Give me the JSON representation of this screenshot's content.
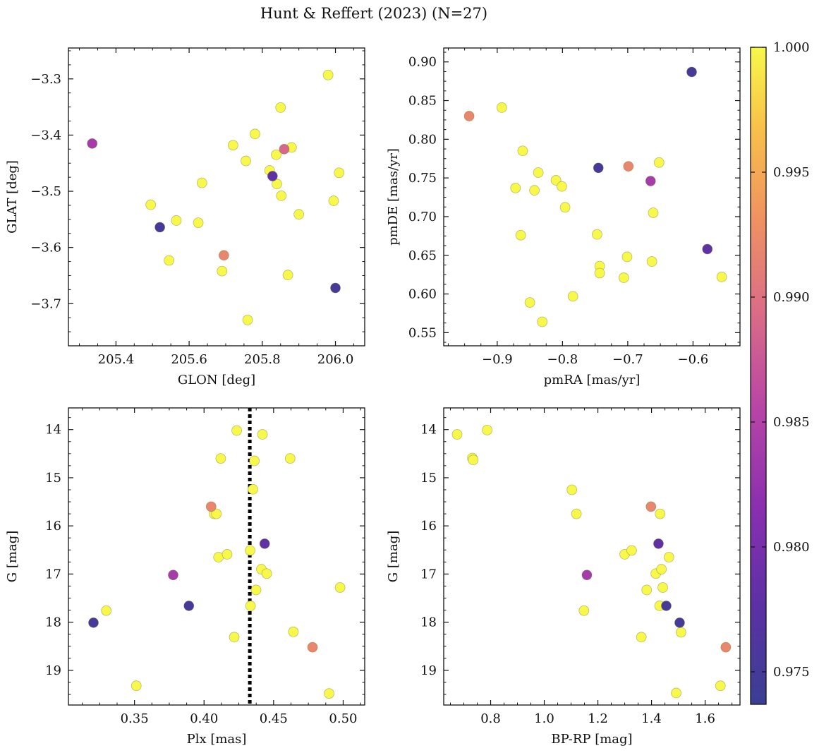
{
  "figure": {
    "title": "Hunt & Reffert (2023) (N=27)"
  },
  "colorbar": {
    "min": 0.9737,
    "max": 1.0,
    "ticks": [
      "0.975",
      "0.980",
      "0.985",
      "0.990",
      "0.995",
      "1.000"
    ],
    "tick_values": [
      0.975,
      0.98,
      0.985,
      0.99,
      0.995,
      1.0
    ],
    "colormap": "plasma"
  },
  "chart_data": [
    {
      "type": "scatter",
      "xlabel": "GLON [deg]",
      "ylabel": "GLAT [deg]",
      "xlim": [
        205.27,
        206.08
      ],
      "ylim": [
        -3.775,
        -3.245
      ],
      "y_inverted": false,
      "xticks": [
        205.4,
        205.6,
        205.8,
        206.0
      ],
      "xtick_labels": [
        "205.4",
        "205.6",
        "205.8",
        "206.0"
      ],
      "yticks": [
        -3.3,
        -3.4,
        -3.5,
        -3.6,
        -3.7
      ],
      "ytick_labels": [
        "−3.3",
        "−3.4",
        "−3.5",
        "−3.6",
        "−3.7"
      ],
      "points": [
        {
          "x": 205.335,
          "y": -3.415,
          "c": 0.984
        },
        {
          "x": 205.495,
          "y": -3.524,
          "c": 1.0
        },
        {
          "x": 205.52,
          "y": -3.564,
          "c": 0.975
        },
        {
          "x": 205.545,
          "y": -3.623,
          "c": 1.0
        },
        {
          "x": 205.565,
          "y": -3.552,
          "c": 1.0
        },
        {
          "x": 205.625,
          "y": -3.556,
          "c": 1.0
        },
        {
          "x": 205.635,
          "y": -3.485,
          "c": 1.0
        },
        {
          "x": 205.69,
          "y": -3.642,
          "c": 1.0
        },
        {
          "x": 205.695,
          "y": -3.614,
          "c": 0.992
        },
        {
          "x": 205.72,
          "y": -3.418,
          "c": 1.0
        },
        {
          "x": 205.755,
          "y": -3.446,
          "c": 1.0
        },
        {
          "x": 205.76,
          "y": -3.729,
          "c": 1.0
        },
        {
          "x": 205.78,
          "y": -3.398,
          "c": 1.0
        },
        {
          "x": 205.82,
          "y": -3.463,
          "c": 1.0
        },
        {
          "x": 205.828,
          "y": -3.473,
          "c": 0.978
        },
        {
          "x": 205.838,
          "y": -3.435,
          "c": 1.0
        },
        {
          "x": 205.84,
          "y": -3.487,
          "c": 1.0
        },
        {
          "x": 205.85,
          "y": -3.351,
          "c": 1.0
        },
        {
          "x": 205.852,
          "y": -3.508,
          "c": 1.0
        },
        {
          "x": 205.86,
          "y": -3.425,
          "c": 0.989
        },
        {
          "x": 205.87,
          "y": -3.649,
          "c": 1.0
        },
        {
          "x": 205.88,
          "y": -3.422,
          "c": 1.0
        },
        {
          "x": 205.9,
          "y": -3.541,
          "c": 1.0
        },
        {
          "x": 205.98,
          "y": -3.293,
          "c": 1.0
        },
        {
          "x": 205.995,
          "y": -3.517,
          "c": 1.0
        },
        {
          "x": 206.0,
          "y": -3.672,
          "c": 0.975
        },
        {
          "x": 206.01,
          "y": -3.467,
          "c": 1.0
        }
      ]
    },
    {
      "type": "scatter",
      "xlabel": "pmRA [mas/yr]",
      "ylabel": "pmDE [mas/yr]",
      "xlim": [
        -0.982,
        -0.528
      ],
      "ylim": [
        0.533,
        0.918
      ],
      "y_inverted": false,
      "xticks": [
        -0.9,
        -0.8,
        -0.7,
        -0.6
      ],
      "xtick_labels": [
        "−0.9",
        "−0.8",
        "−0.7",
        "−0.6"
      ],
      "yticks": [
        0.55,
        0.6,
        0.65,
        0.7,
        0.75,
        0.8,
        0.85,
        0.9
      ],
      "ytick_labels": [
        "0.55",
        "0.60",
        "0.65",
        "0.70",
        "0.75",
        "0.80",
        "0.85",
        "0.90"
      ],
      "points": [
        {
          "x": -0.943,
          "y": 0.83,
          "c": 0.992
        },
        {
          "x": -0.893,
          "y": 0.841,
          "c": 1.0
        },
        {
          "x": -0.872,
          "y": 0.737,
          "c": 1.0
        },
        {
          "x": -0.864,
          "y": 0.676,
          "c": 1.0
        },
        {
          "x": -0.861,
          "y": 0.785,
          "c": 1.0
        },
        {
          "x": -0.85,
          "y": 0.589,
          "c": 1.0
        },
        {
          "x": -0.843,
          "y": 0.734,
          "c": 1.0
        },
        {
          "x": -0.837,
          "y": 0.757,
          "c": 1.0
        },
        {
          "x": -0.831,
          "y": 0.564,
          "c": 1.0
        },
        {
          "x": -0.81,
          "y": 0.747,
          "c": 1.0
        },
        {
          "x": -0.801,
          "y": 0.739,
          "c": 1.0
        },
        {
          "x": -0.796,
          "y": 0.712,
          "c": 1.0
        },
        {
          "x": -0.784,
          "y": 0.597,
          "c": 1.0
        },
        {
          "x": -0.747,
          "y": 0.677,
          "c": 1.0
        },
        {
          "x": -0.745,
          "y": 0.763,
          "c": 0.975
        },
        {
          "x": -0.743,
          "y": 0.636,
          "c": 1.0
        },
        {
          "x": -0.743,
          "y": 0.627,
          "c": 1.0
        },
        {
          "x": -0.706,
          "y": 0.621,
          "c": 1.0
        },
        {
          "x": -0.701,
          "y": 0.648,
          "c": 1.0
        },
        {
          "x": -0.699,
          "y": 0.765,
          "c": 0.992
        },
        {
          "x": -0.665,
          "y": 0.746,
          "c": 0.984
        },
        {
          "x": -0.663,
          "y": 0.642,
          "c": 1.0
        },
        {
          "x": -0.661,
          "y": 0.705,
          "c": 1.0
        },
        {
          "x": -0.652,
          "y": 0.77,
          "c": 1.0
        },
        {
          "x": -0.602,
          "y": 0.887,
          "c": 0.975
        },
        {
          "x": -0.578,
          "y": 0.658,
          "c": 0.978
        },
        {
          "x": -0.556,
          "y": 0.622,
          "c": 1.0
        }
      ]
    },
    {
      "type": "scatter",
      "xlabel": "Plx [mas]",
      "ylabel": "G [mag]",
      "xlim": [
        0.3025,
        0.5155
      ],
      "ylim": [
        19.72,
        13.55
      ],
      "y_inverted": true,
      "xticks": [
        0.35,
        0.4,
        0.45,
        0.5
      ],
      "xtick_labels": [
        "0.35",
        "0.40",
        "0.45",
        "0.50"
      ],
      "yticks": [
        14,
        15,
        16,
        17,
        18,
        19
      ],
      "ytick_labels": [
        "14",
        "15",
        "16",
        "17",
        "18",
        "19"
      ],
      "vline": {
        "x": 0.4329,
        "style": "dotted",
        "color": "#000000"
      },
      "points": [
        {
          "x": 0.3205,
          "y": 18.01,
          "c": 0.975
        },
        {
          "x": 0.3297,
          "y": 17.76,
          "c": 1.0
        },
        {
          "x": 0.3513,
          "y": 19.32,
          "c": 1.0
        },
        {
          "x": 0.3778,
          "y": 17.02,
          "c": 0.984
        },
        {
          "x": 0.3891,
          "y": 17.66,
          "c": 0.975
        },
        {
          "x": 0.4051,
          "y": 15.6,
          "c": 0.992
        },
        {
          "x": 0.4073,
          "y": 15.75,
          "c": 1.0
        },
        {
          "x": 0.4089,
          "y": 15.75,
          "c": 1.0
        },
        {
          "x": 0.4104,
          "y": 16.65,
          "c": 1.0
        },
        {
          "x": 0.412,
          "y": 14.6,
          "c": 1.0
        },
        {
          "x": 0.4166,
          "y": 16.59,
          "c": 1.0
        },
        {
          "x": 0.4217,
          "y": 18.31,
          "c": 1.0
        },
        {
          "x": 0.4235,
          "y": 14.02,
          "c": 1.0
        },
        {
          "x": 0.4331,
          "y": 16.51,
          "c": 1.0
        },
        {
          "x": 0.4334,
          "y": 17.66,
          "c": 1.0
        },
        {
          "x": 0.4351,
          "y": 15.24,
          "c": 1.0
        },
        {
          "x": 0.4362,
          "y": 14.65,
          "c": 1.0
        },
        {
          "x": 0.4374,
          "y": 17.33,
          "c": 1.0
        },
        {
          "x": 0.4412,
          "y": 16.9,
          "c": 1.0
        },
        {
          "x": 0.442,
          "y": 14.1,
          "c": 1.0
        },
        {
          "x": 0.4436,
          "y": 16.37,
          "c": 0.978
        },
        {
          "x": 0.4451,
          "y": 16.99,
          "c": 1.0
        },
        {
          "x": 0.4619,
          "y": 14.6,
          "c": 1.0
        },
        {
          "x": 0.4642,
          "y": 18.2,
          "c": 1.0
        },
        {
          "x": 0.478,
          "y": 18.52,
          "c": 0.992
        },
        {
          "x": 0.4899,
          "y": 19.48,
          "c": 1.0
        },
        {
          "x": 0.4978,
          "y": 17.28,
          "c": 1.0
        }
      ]
    },
    {
      "type": "scatter",
      "xlabel": "BP-RP [mag]",
      "ylabel": "G [mag]",
      "xlim": [
        0.625,
        1.73
      ],
      "ylim": [
        19.72,
        13.55
      ],
      "y_inverted": true,
      "xticks": [
        0.8,
        1.0,
        1.2,
        1.4,
        1.6
      ],
      "xtick_labels": [
        "0.8",
        "1.0",
        "1.2",
        "1.4",
        "1.6"
      ],
      "yticks": [
        14,
        15,
        16,
        17,
        18,
        19
      ],
      "ytick_labels": [
        "14",
        "15",
        "16",
        "17",
        "18",
        "19"
      ],
      "points": [
        {
          "x": 0.675,
          "y": 14.1,
          "c": 1.0
        },
        {
          "x": 0.732,
          "y": 14.59,
          "c": 1.0
        },
        {
          "x": 0.735,
          "y": 14.63,
          "c": 1.0
        },
        {
          "x": 0.787,
          "y": 14.01,
          "c": 1.0
        },
        {
          "x": 1.103,
          "y": 15.25,
          "c": 1.0
        },
        {
          "x": 1.12,
          "y": 15.75,
          "c": 1.0
        },
        {
          "x": 1.148,
          "y": 17.76,
          "c": 1.0
        },
        {
          "x": 1.159,
          "y": 17.02,
          "c": 0.984
        },
        {
          "x": 1.3,
          "y": 16.59,
          "c": 1.0
        },
        {
          "x": 1.326,
          "y": 16.51,
          "c": 1.0
        },
        {
          "x": 1.362,
          "y": 18.31,
          "c": 1.0
        },
        {
          "x": 1.382,
          "y": 17.33,
          "c": 1.0
        },
        {
          "x": 1.398,
          "y": 15.6,
          "c": 0.992
        },
        {
          "x": 1.416,
          "y": 16.99,
          "c": 1.0
        },
        {
          "x": 1.426,
          "y": 16.37,
          "c": 0.978
        },
        {
          "x": 1.43,
          "y": 17.66,
          "c": 1.0
        },
        {
          "x": 1.432,
          "y": 15.75,
          "c": 1.0
        },
        {
          "x": 1.437,
          "y": 16.9,
          "c": 1.0
        },
        {
          "x": 1.442,
          "y": 17.28,
          "c": 1.0
        },
        {
          "x": 1.455,
          "y": 17.66,
          "c": 0.975
        },
        {
          "x": 1.465,
          "y": 16.65,
          "c": 1.0
        },
        {
          "x": 1.492,
          "y": 19.47,
          "c": 1.0
        },
        {
          "x": 1.505,
          "y": 18.01,
          "c": 0.975
        },
        {
          "x": 1.51,
          "y": 18.21,
          "c": 1.0
        },
        {
          "x": 1.657,
          "y": 19.32,
          "c": 1.0
        },
        {
          "x": 1.677,
          "y": 18.52,
          "c": 0.992
        }
      ]
    }
  ]
}
